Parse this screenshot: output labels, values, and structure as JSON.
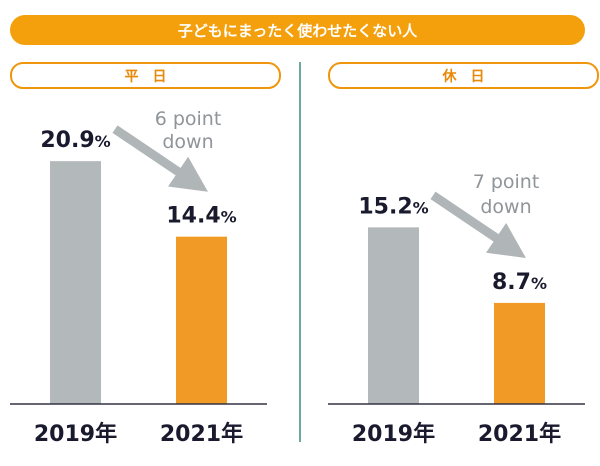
{
  "title": "子どもにまったく使わせたくない人",
  "colors": {
    "accent": "#f4a00d",
    "bar_2019": "#b3b8bb",
    "bar_2021": "#f29a26",
    "arrow": "#b0b5b8",
    "divider": "#6aa9a0",
    "axis": "#333344",
    "text": "#1a1a2e"
  },
  "chart_data": [
    {
      "type": "bar",
      "panel_label": "平日",
      "categories": [
        "2019年",
        "2021年"
      ],
      "values": [
        20.9,
        14.4
      ],
      "value_labels": [
        "20.9%",
        "14.4%"
      ],
      "annotation": [
        "6 point",
        "down"
      ],
      "unit": "%"
    },
    {
      "type": "bar",
      "panel_label": "休日",
      "categories": [
        "2019年",
        "2021年"
      ],
      "values": [
        15.2,
        8.7
      ],
      "value_labels": [
        "15.2%",
        "8.7%"
      ],
      "annotation": [
        "7 point",
        "down"
      ],
      "unit": "%"
    }
  ]
}
